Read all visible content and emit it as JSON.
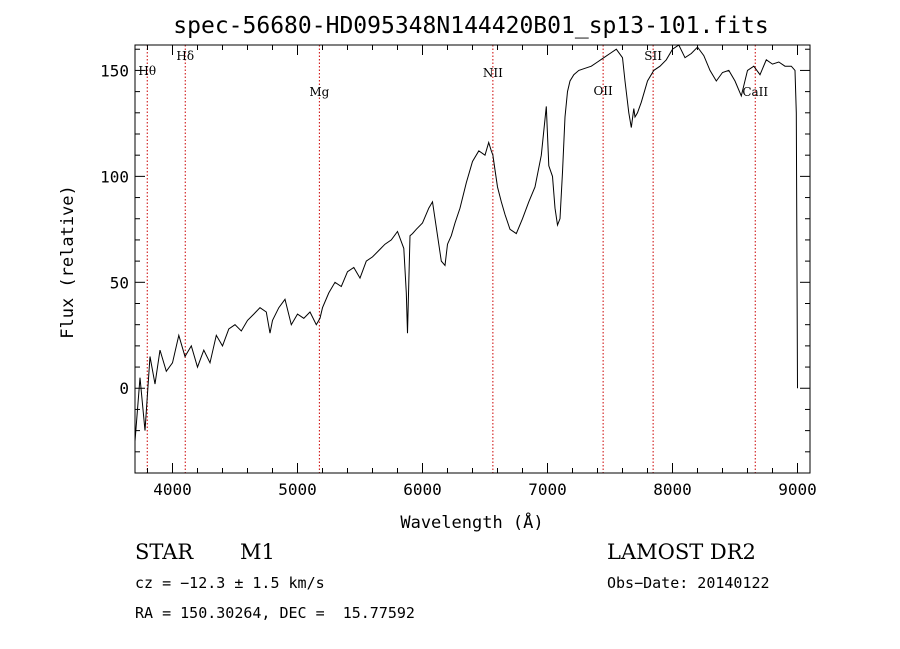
{
  "chart_data": {
    "type": "line",
    "title": "spec-56680-HD095348N144420B01_sp13-101.fits",
    "xlabel": "Wavelength (Å)",
    "ylabel": "Flux (relative)",
    "xlim": [
      3700,
      9100
    ],
    "ylim": [
      -40,
      162
    ],
    "x_ticks": [
      4000,
      5000,
      6000,
      7000,
      8000,
      9000
    ],
    "y_ticks": [
      0,
      50,
      100,
      150
    ],
    "grid": false,
    "series": [
      {
        "x": [
          3700,
          3740,
          3780,
          3820,
          3860,
          3900,
          3950,
          4000,
          4050,
          4100,
          4150,
          4200,
          4250,
          4300,
          4350,
          4400,
          4450,
          4500,
          4550,
          4600,
          4650,
          4700,
          4750,
          4780,
          4800,
          4850,
          4900,
          4950,
          5000,
          5050,
          5100,
          5150,
          5180,
          5200,
          5250,
          5300,
          5350,
          5400,
          5450,
          5500,
          5550,
          5600,
          5650,
          5700,
          5750,
          5800,
          5850,
          5870,
          5880,
          5890,
          5900,
          5920,
          5950,
          6000,
          6050,
          6080,
          6100,
          6150,
          6180,
          6200,
          6230,
          6260,
          6300,
          6350,
          6400,
          6450,
          6500,
          6530,
          6550,
          6563,
          6580,
          6600,
          6630,
          6660,
          6700,
          6750,
          6800,
          6850,
          6900,
          6950,
          6990,
          7010,
          7040,
          7060,
          7080,
          7100,
          7120,
          7140,
          7160,
          7180,
          7210,
          7250,
          7300,
          7350,
          7400,
          7450,
          7500,
          7550,
          7600,
          7620,
          7650,
          7670,
          7690,
          7700,
          7720,
          7750,
          7800,
          7850,
          7900,
          7950,
          8000,
          8050,
          8100,
          8150,
          8200,
          8250,
          8300,
          8350,
          8400,
          8450,
          8500,
          8550,
          8600,
          8650,
          8700,
          8750,
          8800,
          8850,
          8900,
          8950,
          8980,
          8990,
          9000
        ],
        "y": [
          -25,
          5,
          -20,
          15,
          2,
          18,
          8,
          12,
          25,
          15,
          20,
          10,
          18,
          12,
          25,
          20,
          28,
          30,
          27,
          32,
          35,
          38,
          36,
          26,
          32,
          38,
          42,
          30,
          35,
          33,
          36,
          30,
          33,
          38,
          45,
          50,
          48,
          55,
          57,
          52,
          60,
          62,
          65,
          68,
          70,
          74,
          66,
          45,
          26,
          50,
          72,
          73,
          75,
          78,
          85,
          88,
          80,
          60,
          58,
          68,
          72,
          78,
          85,
          97,
          107,
          112,
          110,
          116,
          112,
          110,
          103,
          95,
          88,
          82,
          75,
          73,
          80,
          88,
          95,
          110,
          133,
          105,
          100,
          85,
          77,
          80,
          102,
          128,
          140,
          145,
          148,
          150,
          151,
          152,
          154,
          156,
          158,
          160,
          156,
          145,
          130,
          123,
          132,
          128,
          130,
          135,
          145,
          150,
          152,
          155,
          160,
          162,
          156,
          158,
          161,
          157,
          150,
          145,
          149,
          150,
          145,
          138,
          150,
          152,
          148,
          155,
          153,
          154,
          152,
          152,
          150,
          130,
          0
        ]
      }
    ],
    "annotations": [
      {
        "label": "Hθ",
        "x": 3798
      },
      {
        "label": "Hδ",
        "x": 4102
      },
      {
        "label": "Mg",
        "x": 5175
      },
      {
        "label": "NII",
        "x": 6563
      },
      {
        "label": "OII",
        "x": 7445
      },
      {
        "label": "SII",
        "x": 7845
      },
      {
        "label": "CaII",
        "x": 8662
      }
    ]
  },
  "info": {
    "object_type": "STAR",
    "subclass": "M1",
    "survey": "LAMOST DR2",
    "cz": "cz = −12.3 ± 1.5 km/s",
    "obs_date": "Obs−Date: 20140122",
    "radec": "RA = 150.30264, DEC =  15.77592"
  },
  "colors": {
    "line": "#000000",
    "annotation_line": "#cc0000"
  }
}
